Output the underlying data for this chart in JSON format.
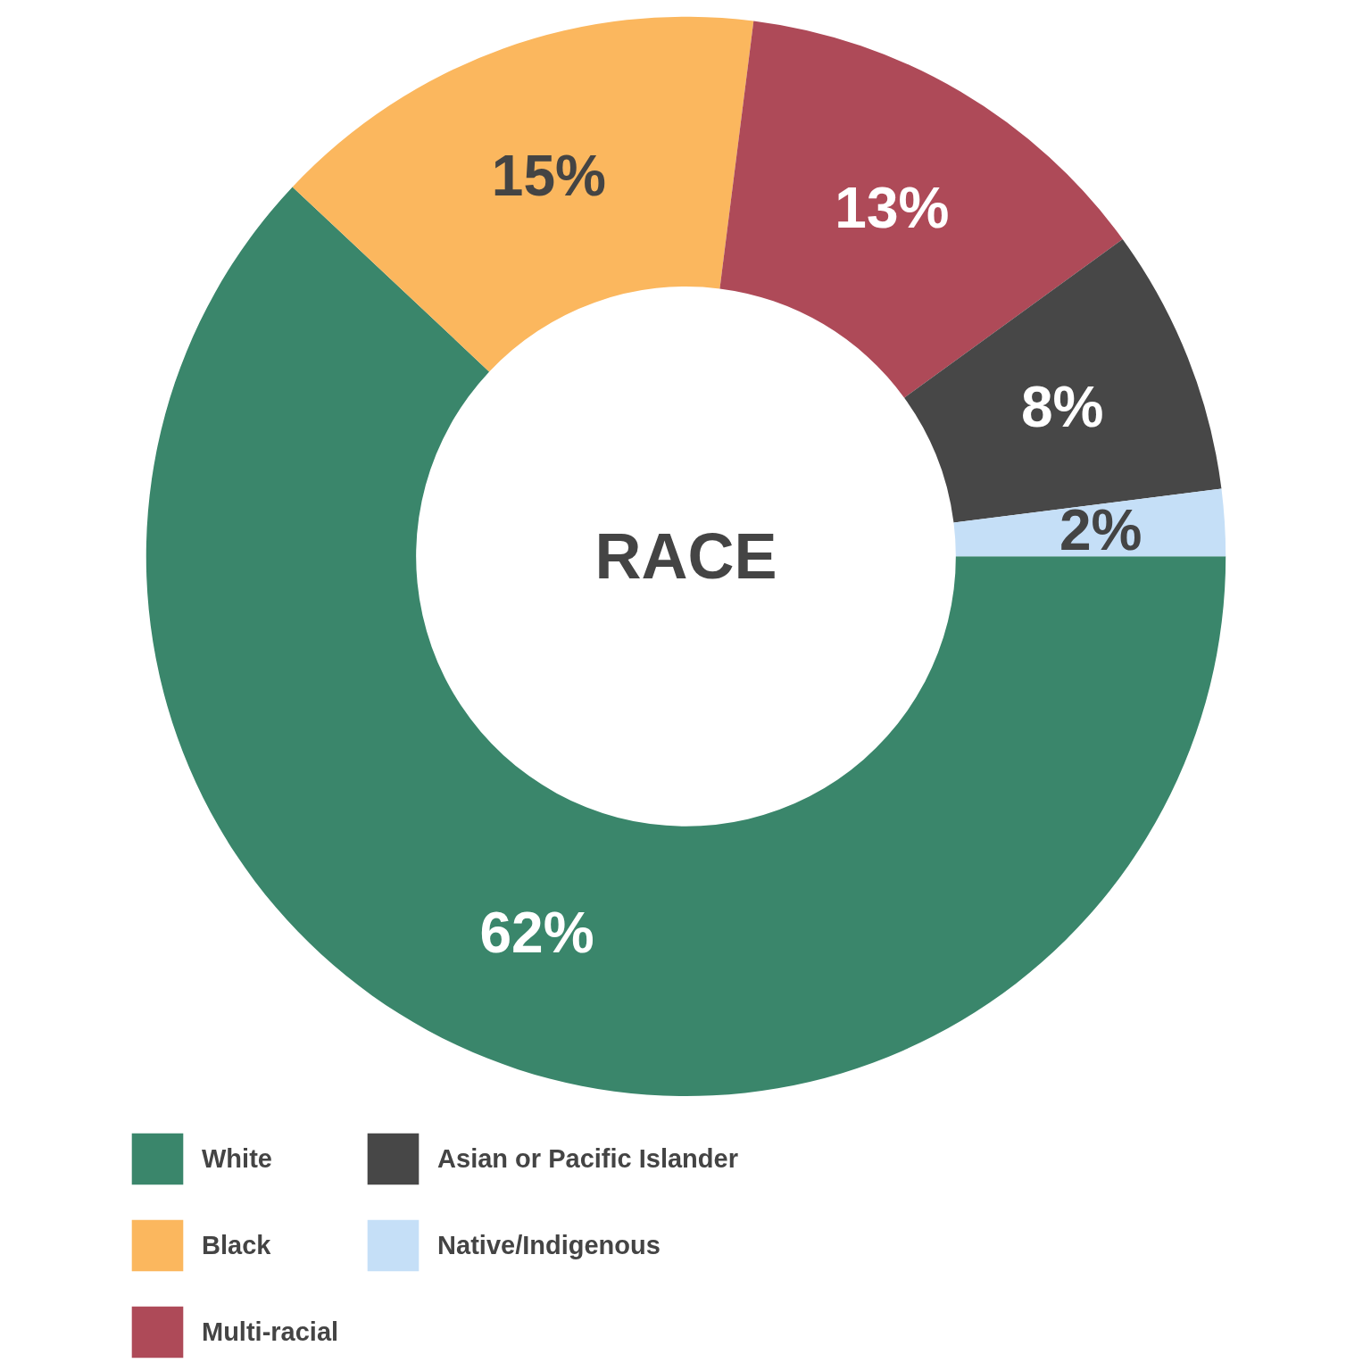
{
  "chart_data": {
    "type": "donut",
    "title": "RACE",
    "categories": [
      "White",
      "Black",
      "Multi-racial",
      "Asian or Pacific Islander",
      "Native/Indigenous"
    ],
    "values": [
      62,
      15,
      13,
      8,
      2
    ],
    "colors": [
      "#3a866b",
      "#fbb75e",
      "#ae4a58",
      "#474747",
      "#c5dff7"
    ],
    "value_labels": [
      "62%",
      "15%",
      "13%",
      "8%",
      "2%"
    ],
    "legend": "bottom"
  }
}
